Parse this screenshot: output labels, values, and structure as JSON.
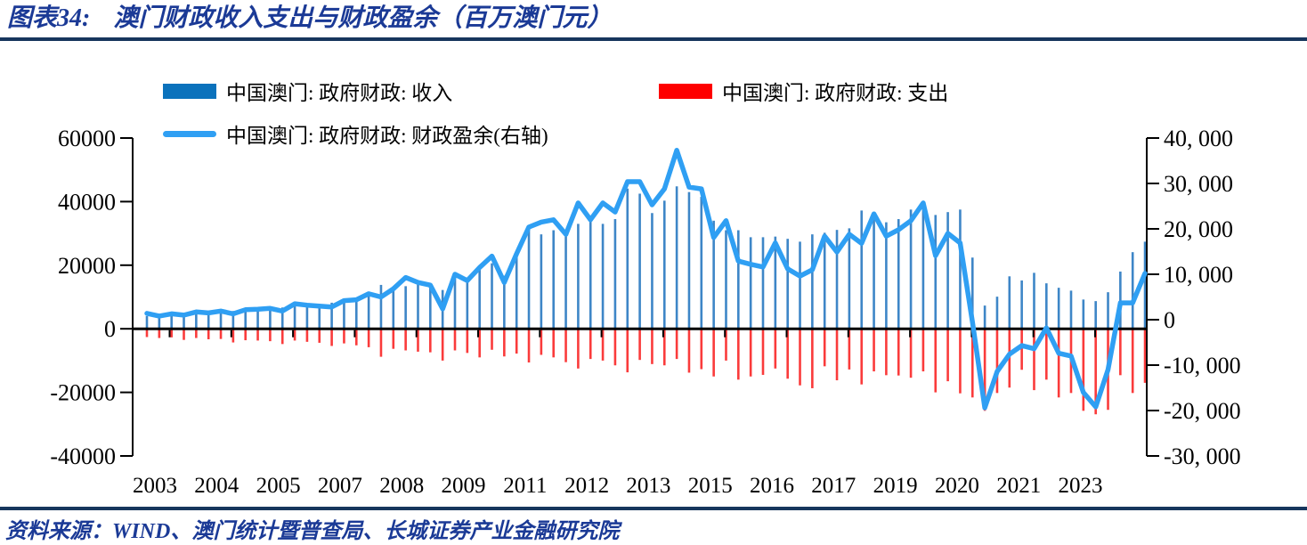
{
  "title": {
    "prefix": "图表34:",
    "text": "澳门财政收入支出与财政盈余（百万澳门元）"
  },
  "legend": {
    "revenue": {
      "label": "中国澳门: 政府财政: 收入",
      "swatch_color": "#0b72bc"
    },
    "expense": {
      "label": "中国澳门: 政府财政: 支出",
      "swatch_color": "#fe0000"
    },
    "surplus": {
      "label": "中国澳门: 政府财政: 财政盈余(右轴)",
      "swatch_color": "#2f9ff3"
    }
  },
  "source": "资料来源：WIND、澳门统计暨普查局、长城证券产业金融研究院",
  "colors": {
    "title_navy": "#1b3a96",
    "rule_navy": "#17365d",
    "bar_revenue": "#3e86c7",
    "bar_expense": "#fa3b3b",
    "line_surplus": "#2f9ff3",
    "axis_black": "#000000"
  },
  "chart_data": {
    "type": "bar+line combo",
    "title": "澳门财政收入支出与财政盈余（百万澳门元）",
    "frequency": "quarterly",
    "period_start": "2003Q1",
    "period_end": "2023Q2",
    "x_tick_labels": [
      "2003",
      "2004",
      "2005",
      "2007",
      "2008",
      "2009",
      "2011",
      "2012",
      "2013",
      "2015",
      "2016",
      "2017",
      "2019",
      "2020",
      "2021",
      "2023"
    ],
    "left_axis": {
      "min": -40000,
      "max": 60000,
      "tick_labels": [
        "60000",
        "40000",
        "20000",
        "0",
        "-20000",
        "-40000"
      ]
    },
    "right_axis": {
      "min": -30000,
      "max": 40000,
      "tick_labels": [
        "40, 000",
        "30, 000",
        "20, 000",
        "10, 000",
        "0",
        "-10, 000",
        "-20, 000",
        "-30, 000"
      ]
    },
    "grid": "off",
    "legend_position": "top",
    "quarters": [
      "2003Q1",
      "2003Q2",
      "2003Q3",
      "2003Q4",
      "2004Q1",
      "2004Q2",
      "2004Q3",
      "2004Q4",
      "2005Q1",
      "2005Q2",
      "2005Q3",
      "2005Q4",
      "2006Q1",
      "2006Q2",
      "2006Q3",
      "2006Q4",
      "2007Q1",
      "2007Q2",
      "2007Q3",
      "2007Q4",
      "2008Q1",
      "2008Q2",
      "2008Q3",
      "2008Q4",
      "2009Q1",
      "2009Q2",
      "2009Q3",
      "2009Q4",
      "2010Q1",
      "2010Q2",
      "2010Q3",
      "2010Q4",
      "2011Q1",
      "2011Q2",
      "2011Q3",
      "2011Q4",
      "2012Q1",
      "2012Q2",
      "2012Q3",
      "2012Q4",
      "2013Q1",
      "2013Q2",
      "2013Q3",
      "2013Q4",
      "2014Q1",
      "2014Q2",
      "2014Q3",
      "2014Q4",
      "2015Q1",
      "2015Q2",
      "2015Q3",
      "2015Q4",
      "2016Q1",
      "2016Q2",
      "2016Q3",
      "2016Q4",
      "2017Q1",
      "2017Q2",
      "2017Q3",
      "2017Q4",
      "2018Q1",
      "2018Q2",
      "2018Q3",
      "2018Q4",
      "2019Q1",
      "2019Q2",
      "2019Q3",
      "2019Q4",
      "2020Q1",
      "2020Q2",
      "2020Q3",
      "2020Q4",
      "2021Q1",
      "2021Q2",
      "2021Q3",
      "2021Q4",
      "2022Q1",
      "2022Q2",
      "2022Q3",
      "2022Q4",
      "2023Q1",
      "2023Q2"
    ],
    "series": [
      {
        "name": "中国澳门: 政府财政: 收入",
        "type": "bar",
        "axis": "left",
        "color": "#3e86c7",
        "values": [
          4000,
          3700,
          4000,
          4500,
          4600,
          4800,
          5100,
          5600,
          5800,
          6000,
          6400,
          6700,
          7200,
          7300,
          7400,
          8200,
          8800,
          9600,
          11500,
          13800,
          12600,
          13400,
          13900,
          14100,
          12200,
          16600,
          15900,
          20000,
          20600,
          16700,
          23800,
          31000,
          29700,
          31000,
          29300,
          33000,
          34000,
          33000,
          34500,
          44100,
          42500,
          36400,
          40300,
          44800,
          43000,
          41500,
          34000,
          31000,
          31000,
          28800,
          28800,
          29000,
          28300,
          27400,
          29700,
          30200,
          31100,
          31600,
          37200,
          36700,
          33500,
          34500,
          37500,
          40000,
          35800,
          36700,
          37500,
          22400,
          7300,
          10100,
          16500,
          15200,
          17600,
          14300,
          12900,
          12000,
          9200,
          8700,
          11500,
          18000,
          24100,
          27400
        ]
      },
      {
        "name": "中国澳门: 政府财政: 支出",
        "type": "bar",
        "axis": "left",
        "color": "#fa3b3b",
        "values": [
          -2600,
          -2900,
          -2700,
          -3500,
          -2900,
          -3300,
          -3200,
          -4300,
          -3600,
          -3700,
          -3900,
          -4800,
          -3700,
          -4100,
          -4400,
          -5400,
          -4600,
          -5200,
          -5800,
          -8800,
          -6300,
          -6800,
          -7200,
          -7400,
          -10000,
          -6800,
          -7600,
          -9000,
          -6600,
          -8700,
          -7800,
          -10600,
          -8200,
          -9000,
          -10500,
          -12500,
          -9500,
          -10000,
          -11500,
          -13700,
          -9800,
          -11100,
          -11500,
          -9500,
          -13800,
          -12700,
          -15000,
          -10000,
          -16000,
          -15000,
          -14500,
          -12500,
          -15700,
          -17800,
          -18700,
          -11800,
          -16200,
          -12800,
          -17500,
          -13400,
          -14600,
          -14700,
          -15400,
          -13400,
          -20000,
          -16500,
          -20300,
          -21600,
          -25800,
          -20200,
          -18500,
          -12900,
          -19300,
          -16000,
          -21600,
          -20200,
          -25800,
          -26900,
          -25500,
          -14600,
          -20200,
          -17000
        ]
      },
      {
        "name": "中国澳门: 政府财政: 财政盈余(右轴)",
        "type": "line",
        "axis": "right",
        "color": "#2f9ff3",
        "values": [
          1400,
          800,
          1300,
          1000,
          1700,
          1500,
          1900,
          1300,
          2200,
          2300,
          2500,
          1900,
          3500,
          3200,
          3000,
          2800,
          4200,
          4400,
          5700,
          5000,
          6800,
          9300,
          8200,
          7600,
          2400,
          10000,
          8600,
          11500,
          14000,
          8200,
          14500,
          20400,
          21500,
          22000,
          18800,
          25700,
          22000,
          25700,
          23700,
          30400,
          30400,
          25300,
          28800,
          37300,
          29200,
          28800,
          18100,
          21800,
          12900,
          12200,
          11600,
          16900,
          11200,
          9600,
          11000,
          18400,
          14900,
          18800,
          16800,
          23300,
          18400,
          19800,
          21800,
          25700,
          14100,
          19000,
          16900,
          -600,
          -19400,
          -11400,
          -7600,
          -5700,
          -6400,
          -1800,
          -7400,
          -8000,
          -16000,
          -19200,
          -11000,
          3700,
          3700,
          10200
        ]
      }
    ]
  }
}
